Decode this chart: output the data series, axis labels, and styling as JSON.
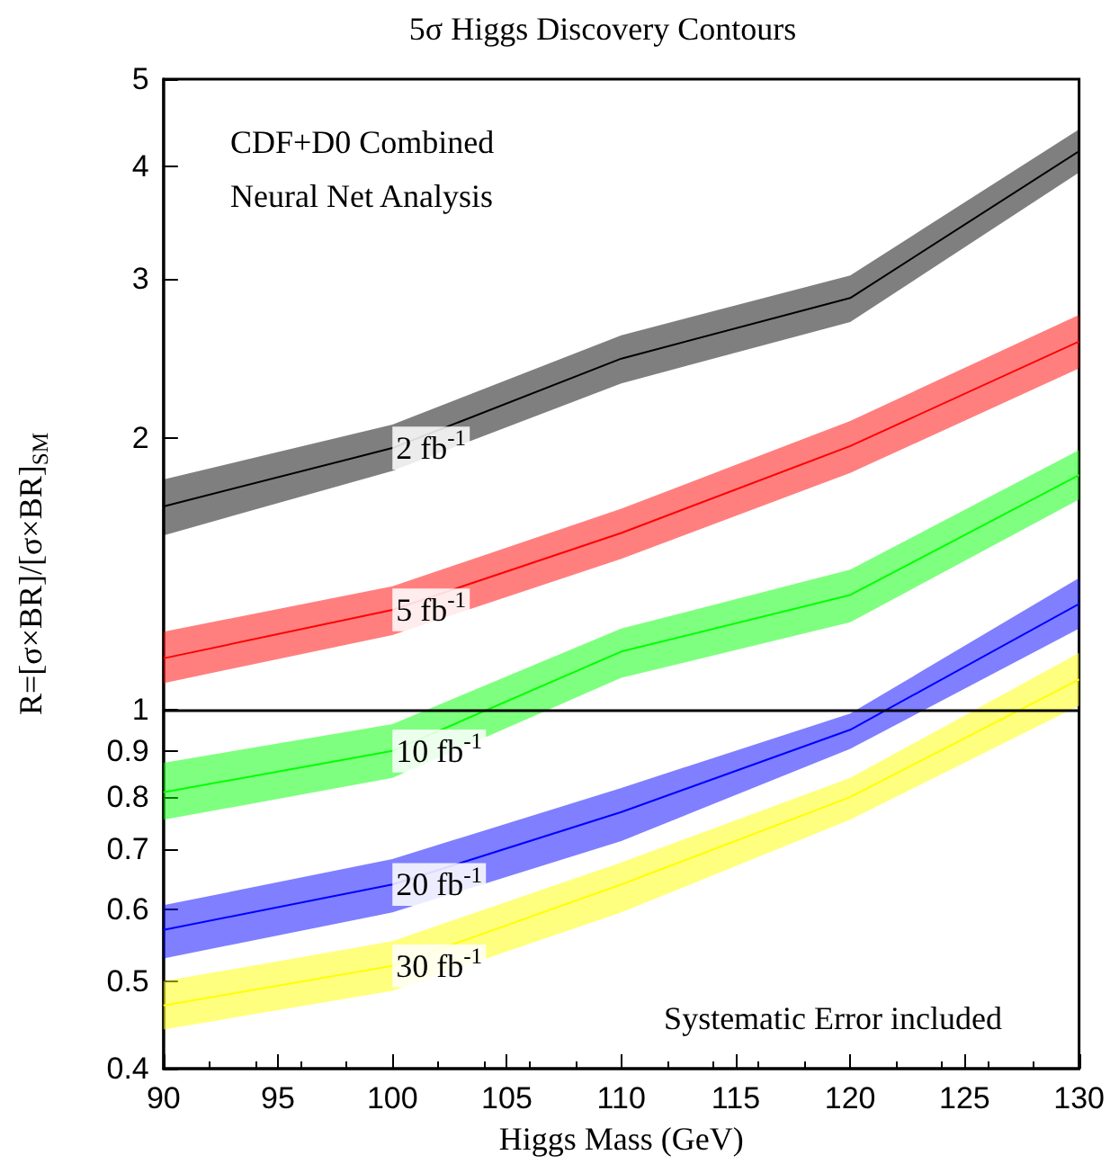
{
  "chart_data": {
    "type": "line",
    "title": "5σ Higgs Discovery Contours",
    "xlabel": "Higgs Mass (GeV)",
    "ylabel": "R=[σ×BR]/[σ×BR]$_{SM}$",
    "annotations": [
      "CDF+D0 Combined",
      "Neural Net Analysis",
      "Systematic Error included"
    ],
    "x": [
      90,
      100,
      110,
      120,
      130
    ],
    "series": [
      {
        "name": "2 fb$^{-1}$",
        "color": "#000000",
        "values": [
          1.68,
          1.95,
          2.45,
          2.86,
          4.16
        ],
        "lower": [
          1.56,
          1.84,
          2.3,
          2.69,
          3.94
        ],
        "upper": [
          1.8,
          2.07,
          2.6,
          3.03,
          4.4
        ]
      },
      {
        "name": "5 fb$^{-1}$",
        "color": "#ff0000",
        "values": [
          1.14,
          1.29,
          1.57,
          1.96,
          2.56
        ],
        "lower": [
          1.07,
          1.21,
          1.47,
          1.83,
          2.39
        ],
        "upper": [
          1.22,
          1.37,
          1.67,
          2.09,
          2.74
        ]
      },
      {
        "name": "10 fb$^{-1}$",
        "color": "#00ff00",
        "values": [
          0.81,
          0.9,
          1.16,
          1.34,
          1.82
        ],
        "lower": [
          0.755,
          0.84,
          1.085,
          1.25,
          1.71
        ],
        "upper": [
          0.873,
          0.964,
          1.23,
          1.43,
          1.94
        ]
      },
      {
        "name": "20 fb$^{-1}$",
        "color": "#0000ff",
        "values": [
          0.57,
          0.64,
          0.77,
          0.95,
          1.31
        ],
        "lower": [
          0.53,
          0.596,
          0.715,
          0.905,
          1.23
        ],
        "upper": [
          0.607,
          0.683,
          0.819,
          0.99,
          1.4
        ]
      },
      {
        "name": "30 fb$^{-1}$",
        "color": "#ffff00",
        "values": [
          0.47,
          0.52,
          0.64,
          0.8,
          1.08
        ],
        "lower": [
          0.442,
          0.488,
          0.596,
          0.755,
          1.01
        ],
        "upper": [
          0.5,
          0.554,
          0.677,
          0.84,
          1.156
        ]
      }
    ],
    "xlim": [
      90,
      130
    ],
    "xticks": [
      90,
      95,
      100,
      105,
      110,
      115,
      120,
      125,
      130
    ],
    "ylim": [
      0.4,
      5
    ],
    "yticks": [
      0.4,
      0.5,
      0.6,
      0.7,
      0.8,
      0.9,
      1,
      2,
      3,
      4,
      5
    ],
    "log": "y",
    "ref_lines": [
      {
        "axis": "y",
        "value": 1,
        "color": "#000000"
      }
    ],
    "grid": false,
    "legend": false
  }
}
